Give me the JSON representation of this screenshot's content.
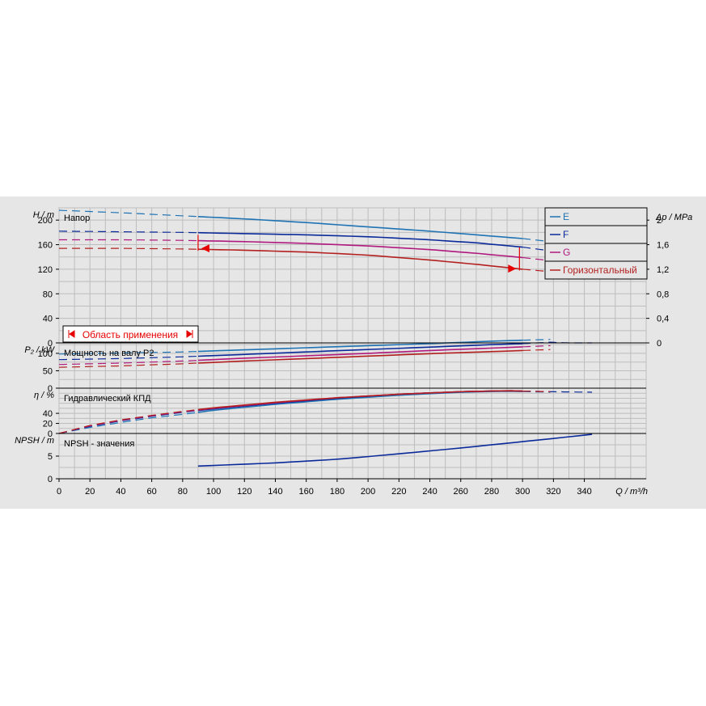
{
  "colors": {
    "background": "#e6e6e6",
    "grid": "#bdbdbd",
    "E": "#1e73b4",
    "F": "#0b2a9a",
    "G": "#b0197d",
    "H": "#b42020",
    "range": "#e60000"
  },
  "legend": {
    "items": [
      {
        "key": "E",
        "label": "E"
      },
      {
        "key": "F",
        "label": "F"
      },
      {
        "key": "G",
        "label": "G"
      },
      {
        "key": "H",
        "label": "Горизонтальный"
      }
    ]
  },
  "range_label": "Область применения",
  "chart_data": [
    {
      "type": "line",
      "title": "Напор",
      "ylabel": "H / m",
      "ylabel_right": "Δp / MPa",
      "ylim": [
        0,
        220
      ],
      "yticks": [
        0,
        40,
        80,
        120,
        160,
        200
      ],
      "ylim_right": [
        0,
        2.2
      ],
      "yticks_right": [
        {
          "value": 0,
          "label": "0"
        },
        {
          "value": 0.4,
          "label": "0,4"
        },
        {
          "value": 0.8,
          "label": "0,8"
        },
        {
          "value": 1.2,
          "label": "1,2"
        },
        {
          "value": 1.6,
          "label": "1,6"
        },
        {
          "value": 2.0,
          "label": "2"
        }
      ],
      "series": [
        {
          "name": "E",
          "color_key": "E",
          "points": [
            [
              0,
              216
            ],
            [
              40,
              212
            ],
            [
              80,
              207
            ],
            [
              120,
              202
            ],
            [
              160,
              196
            ],
            [
              200,
              189
            ],
            [
              240,
              182
            ],
            [
              280,
              174
            ],
            [
              300,
              170
            ],
            [
              318,
              165
            ]
          ],
          "solid_range": [
            90,
            300
          ]
        },
        {
          "name": "F",
          "color_key": "F",
          "points": [
            [
              0,
              182
            ],
            [
              40,
              181
            ],
            [
              80,
              180
            ],
            [
              120,
              178
            ],
            [
              160,
              176
            ],
            [
              200,
              173
            ],
            [
              240,
              168
            ],
            [
              270,
              163
            ],
            [
              300,
              156
            ],
            [
              318,
              150
            ]
          ],
          "solid_range": [
            90,
            300
          ]
        },
        {
          "name": "G",
          "color_key": "G",
          "points": [
            [
              0,
              168
            ],
            [
              40,
              168
            ],
            [
              80,
              167
            ],
            [
              120,
              165
            ],
            [
              160,
              162
            ],
            [
              200,
              158
            ],
            [
              240,
              152
            ],
            [
              270,
              146
            ],
            [
              300,
              139
            ],
            [
              318,
              134
            ]
          ],
          "solid_range": [
            90,
            300
          ]
        },
        {
          "name": "Горизонтальный",
          "color_key": "H",
          "points": [
            [
              0,
              154
            ],
            [
              40,
              154
            ],
            [
              80,
              153
            ],
            [
              120,
              151
            ],
            [
              160,
              148
            ],
            [
              200,
              143
            ],
            [
              240,
              135
            ],
            [
              270,
              128
            ],
            [
              300,
              120
            ],
            [
              318,
              116
            ]
          ],
          "solid_range": [
            90,
            300
          ]
        }
      ],
      "duty_range": [
        90,
        298
      ]
    },
    {
      "type": "line",
      "title": "Мощность на валу P2",
      "ylabel": "P₂ / kW",
      "ylim": [
        0,
        130
      ],
      "yticks": [
        0,
        50,
        100
      ],
      "series": [
        {
          "name": "E",
          "color_key": "E",
          "points": [
            [
              0,
              98
            ],
            [
              40,
              101
            ],
            [
              80,
              104
            ],
            [
              120,
              110
            ],
            [
              160,
              116
            ],
            [
              200,
              122
            ],
            [
              240,
              128
            ],
            [
              280,
              135
            ],
            [
              318,
              140
            ]
          ],
          "solid_range": [
            90,
            300
          ]
        },
        {
          "name": "F",
          "color_key": "F",
          "points": [
            [
              0,
              82
            ],
            [
              40,
              85
            ],
            [
              80,
              90
            ],
            [
              120,
              97
            ],
            [
              160,
              104
            ],
            [
              200,
              111
            ],
            [
              240,
              118
            ],
            [
              280,
              125
            ],
            [
              300,
              128
            ],
            [
              318,
              132
            ],
            [
              330,
              130
            ],
            [
              345,
              130
            ]
          ],
          "solid_range": [
            90,
            300
          ]
        },
        {
          "name": "G",
          "color_key": "G",
          "points": [
            [
              0,
              68
            ],
            [
              40,
              72
            ],
            [
              80,
              78
            ],
            [
              120,
              86
            ],
            [
              160,
              93
            ],
            [
              200,
              100
            ],
            [
              240,
              108
            ],
            [
              280,
              115
            ],
            [
              318,
              122
            ]
          ],
          "solid_range": [
            90,
            300
          ]
        },
        {
          "name": "Горизонтальный",
          "color_key": "H",
          "points": [
            [
              0,
              60
            ],
            [
              40,
              64
            ],
            [
              80,
              70
            ],
            [
              120,
              78
            ],
            [
              160,
              85
            ],
            [
              200,
              92
            ],
            [
              240,
              99
            ],
            [
              280,
              105
            ],
            [
              318,
              111
            ]
          ],
          "solid_range": [
            90,
            300
          ]
        }
      ]
    },
    {
      "type": "line",
      "title": "Гидравлический КПД",
      "ylabel": "η / %",
      "ylim": [
        0,
        90
      ],
      "yticks": [
        0,
        20,
        40
      ],
      "series": [
        {
          "name": "E",
          "color_key": "E",
          "points": [
            [
              0,
              0
            ],
            [
              20,
              12
            ],
            [
              40,
              22
            ],
            [
              60,
              31
            ],
            [
              80,
              38
            ],
            [
              100,
              46
            ],
            [
              140,
              58
            ],
            [
              180,
              68
            ],
            [
              220,
              76
            ],
            [
              260,
              82
            ],
            [
              290,
              84
            ],
            [
              318,
              82
            ]
          ],
          "solid_range": [
            90,
            300
          ]
        },
        {
          "name": "F",
          "color_key": "F",
          "points": [
            [
              0,
              0
            ],
            [
              20,
              14
            ],
            [
              40,
              25
            ],
            [
              60,
              34
            ],
            [
              80,
              42
            ],
            [
              100,
              49
            ],
            [
              140,
              60
            ],
            [
              180,
              70
            ],
            [
              220,
              78
            ],
            [
              260,
              83
            ],
            [
              290,
              85
            ],
            [
              318,
              83
            ],
            [
              345,
              82
            ]
          ],
          "solid_range": [
            90,
            300
          ]
        },
        {
          "name": "G",
          "color_key": "G",
          "points": [
            [
              0,
              0
            ],
            [
              20,
              15
            ],
            [
              40,
              26
            ],
            [
              60,
              35
            ],
            [
              80,
              43
            ],
            [
              100,
              50
            ],
            [
              140,
              61
            ],
            [
              180,
              71
            ],
            [
              220,
              78
            ],
            [
              260,
              83
            ],
            [
              290,
              85
            ],
            [
              318,
              83
            ]
          ],
          "solid_range": [
            90,
            300
          ]
        },
        {
          "name": "Горизонтальный",
          "color_key": "H",
          "points": [
            [
              0,
              0
            ],
            [
              20,
              16
            ],
            [
              40,
              27
            ],
            [
              60,
              36
            ],
            [
              80,
              44
            ],
            [
              100,
              51
            ],
            [
              140,
              62
            ],
            [
              180,
              71
            ],
            [
              220,
              78
            ],
            [
              260,
              83
            ],
            [
              290,
              85
            ],
            [
              318,
              83
            ]
          ],
          "solid_range": [
            90,
            300
          ]
        }
      ]
    },
    {
      "type": "line",
      "title": "NPSH - значения",
      "ylabel": "NPSH / m",
      "ylim": [
        0,
        10
      ],
      "yticks": [
        0,
        5
      ],
      "series": [
        {
          "name": "F",
          "color_key": "F",
          "points": [
            [
              90,
              2.8
            ],
            [
              140,
              3.5
            ],
            [
              180,
              4.3
            ],
            [
              220,
              5.5
            ],
            [
              260,
              6.8
            ],
            [
              300,
              8.2
            ],
            [
              320,
              8.9
            ],
            [
              345,
              9.8
            ]
          ],
          "solid_range": [
            90,
            345
          ]
        }
      ]
    }
  ],
  "x_axis": {
    "xlabel": "Q / m³/h",
    "xlim": [
      0,
      380
    ],
    "xticks": [
      0,
      20,
      40,
      60,
      80,
      100,
      120,
      140,
      160,
      180,
      200,
      220,
      240,
      260,
      280,
      300,
      320,
      340
    ]
  }
}
